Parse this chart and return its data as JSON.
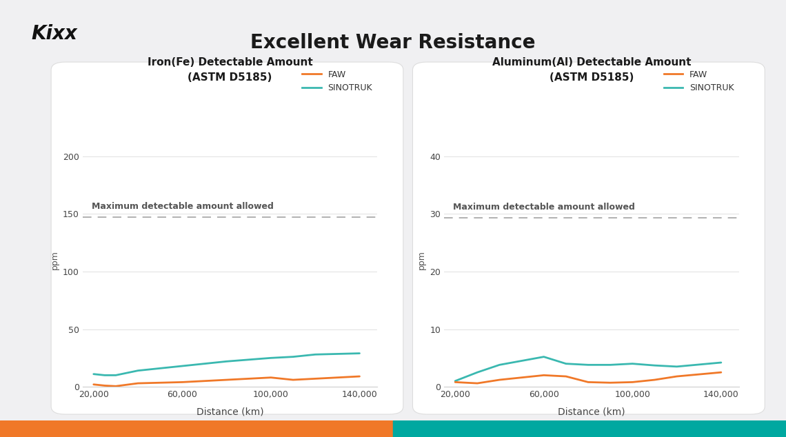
{
  "title": "Excellent Wear Resistance",
  "background_color": "#f0f0f2",
  "panel_color": "#ffffff",
  "chart1": {
    "title": "Iron(Fe) Detectable Amount\n(ASTM D5185)",
    "ylabel": "ppm",
    "xlabel": "Distance (km)",
    "x": [
      20000,
      25000,
      30000,
      40000,
      60000,
      80000,
      100000,
      110000,
      120000,
      140000
    ],
    "faw_y": [
      2,
      1,
      0.5,
      3,
      4,
      6,
      8,
      6,
      7,
      9
    ],
    "sinotruk_y": [
      11,
      10,
      10,
      14,
      18,
      22,
      25,
      26,
      28,
      29
    ],
    "max_line": 147,
    "max_label": "Maximum detectable amount allowed",
    "ylim": [
      0,
      220
    ],
    "yticks": [
      0,
      50,
      100,
      150,
      200
    ],
    "xticks": [
      20000,
      60000,
      100000,
      140000
    ],
    "xticklabels": [
      "20,000",
      "60,000",
      "100,000",
      "140,000"
    ]
  },
  "chart2": {
    "title": "Aluminum(Al) Detectable Amount\n(ASTM D5185)",
    "ylabel": "ppm",
    "xlabel": "Distance (km)",
    "x": [
      20000,
      30000,
      40000,
      60000,
      70000,
      80000,
      90000,
      100000,
      110000,
      120000,
      140000
    ],
    "faw_y": [
      0.8,
      0.6,
      1.2,
      2.0,
      1.8,
      0.8,
      0.7,
      0.8,
      1.2,
      1.8,
      2.5
    ],
    "sinotruk_y": [
      1.0,
      2.5,
      3.8,
      5.2,
      4.0,
      3.8,
      3.8,
      4.0,
      3.7,
      3.5,
      4.2
    ],
    "max_line": 29.3,
    "max_label": "Maximum detectable amount allowed",
    "ylim": [
      0,
      44
    ],
    "yticks": [
      0,
      10,
      20,
      30,
      40
    ],
    "xticks": [
      20000,
      60000,
      100000,
      140000
    ],
    "xticklabels": [
      "20,000",
      "60,000",
      "100,000",
      "140,000"
    ]
  },
  "faw_color": "#f07828",
  "sinotruk_color": "#3ab8b0",
  "max_line_color": "#aaaaaa",
  "bottom_left_color": "#f07828",
  "bottom_right_color": "#00a8a0",
  "kixx_text": "Kixx",
  "kixx_color": "#111111"
}
